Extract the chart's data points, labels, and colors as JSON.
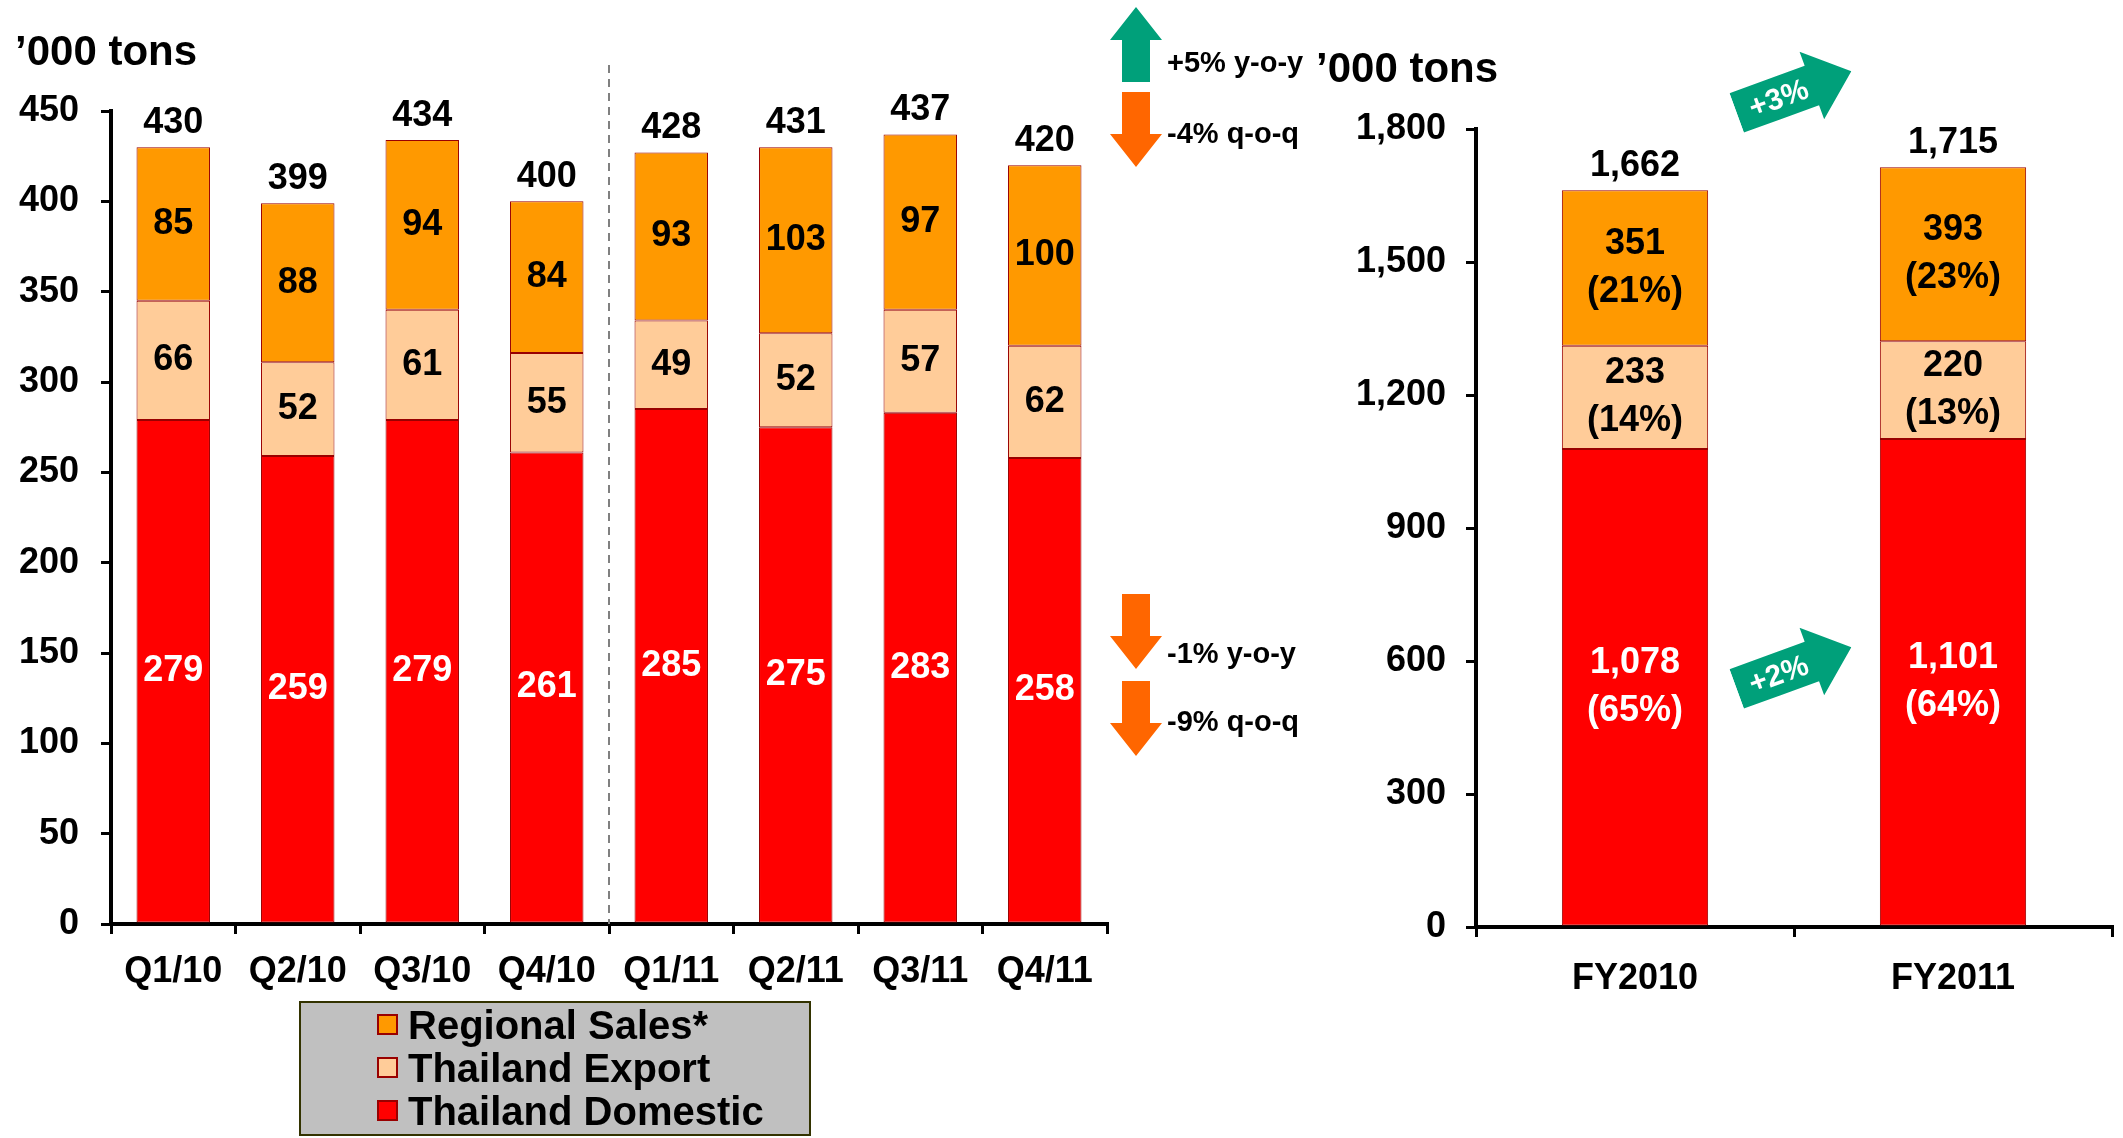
{
  "chart_data": [
    {
      "type": "bar",
      "stacked": true,
      "ylabel": "’000 tons",
      "categories": [
        "Q1/10",
        "Q2/10",
        "Q3/10",
        "Q4/10",
        "Q1/11",
        "Q2/11",
        "Q3/11",
        "Q4/11"
      ],
      "series": [
        {
          "name": "Thailand Domestic",
          "color": "#ff0000",
          "values": [
            279,
            259,
            279,
            261,
            285,
            275,
            283,
            258
          ]
        },
        {
          "name": "Thailand Export",
          "color": "#ffcc99",
          "values": [
            66,
            52,
            61,
            55,
            49,
            52,
            57,
            62
          ]
        },
        {
          "name": "Regional Sales*",
          "color": "#ff9900",
          "values": [
            85,
            88,
            94,
            84,
            93,
            103,
            97,
            100
          ]
        }
      ],
      "ylim": [
        0,
        450
      ],
      "yticks": [
        0,
        50,
        100,
        150,
        200,
        250,
        300,
        350,
        400,
        450
      ],
      "grid": false,
      "legend": "bottom",
      "data_labels": true,
      "totals": [
        "430",
        "399",
        "434",
        "400",
        "428",
        "431",
        "437",
        "420"
      ],
      "annotations": [
        "+5% y-o-y",
        "-4% q-o-q",
        "-1% y-o-y",
        "-9% q-o-q"
      ]
    },
    {
      "type": "bar",
      "stacked": true,
      "ylabel": "’000 tons",
      "categories": [
        "FY2010",
        "FY2011"
      ],
      "series": [
        {
          "color": "#ff0000",
          "values": [
            1078,
            1101
          ],
          "value_labels": [
            "1,078 (65%)",
            "1,101 (64%)"
          ]
        },
        {
          "color": "#ffcc99",
          "values": [
            233,
            220
          ],
          "value_labels": [
            "233 (14%)",
            "220 (13%)"
          ]
        },
        {
          "color": "#ff9900",
          "values": [
            351,
            393
          ],
          "value_labels": [
            "351 (21%)",
            "393 (23%)"
          ]
        }
      ],
      "ylim": [
        0,
        1800
      ],
      "yticks": [
        0,
        300,
        600,
        900,
        {
          "value": 1200,
          "label": "1,200"
        },
        {
          "value": 1500,
          "label": "1,500"
        },
        {
          "value": 1800,
          "label": "1,800"
        }
      ],
      "grid": false,
      "totals": [
        "1,662",
        "1,715"
      ],
      "annotations": [
        "+3%",
        "+2%"
      ]
    }
  ]
}
